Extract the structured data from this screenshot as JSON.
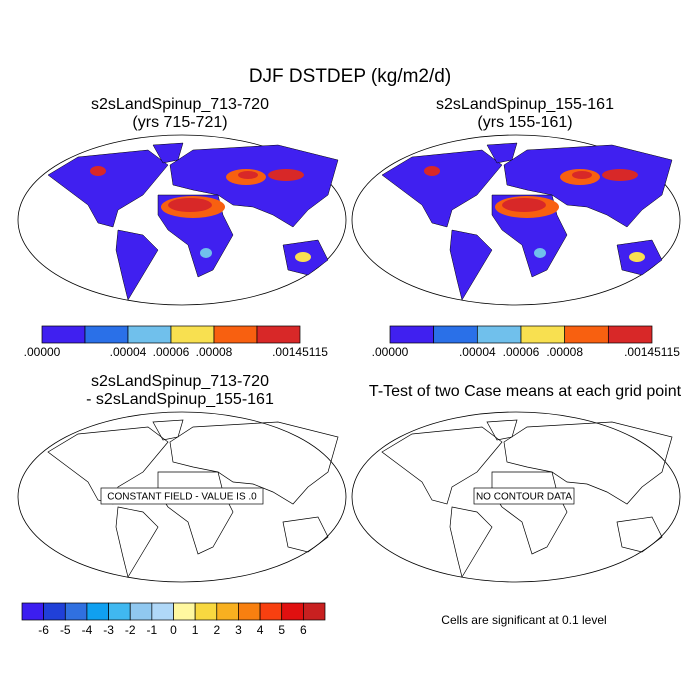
{
  "title": "DJF DSTDEP (kg/m2/d)",
  "panels": [
    {
      "title": "s2sLandSpinup_713-720",
      "subtitle": "(yrs 715-721)"
    },
    {
      "title": "s2sLandSpinup_155-161",
      "subtitle": "(yrs 155-161)"
    },
    {
      "title": "s2sLandSpinup_713-720",
      "subtitle": "- s2sLandSpinup_155-161",
      "note": "CONSTANT FIELD - VALUE IS .0"
    },
    {
      "title": "T-Test of two Case means at each grid point",
      "note": "NO CONTOUR DATA"
    }
  ],
  "colorbars": [
    {
      "colors": [
        "#4020f0",
        "#2a70e8",
        "#70c0ec",
        "#f8e050",
        "#f86010",
        "#d82828"
      ],
      "labels": [
        ".00000",
        ".00004",
        ".00006",
        ".00008",
        ".00145115"
      ]
    },
    {
      "colors": [
        "#4020f0",
        "#2a70e8",
        "#70c0ec",
        "#f8e050",
        "#f86010",
        "#d82828"
      ],
      "labels": [
        ".00000",
        ".00004",
        ".00006",
        ".00008",
        ".00145115"
      ]
    },
    {
      "colors": [
        "#3c1ef0",
        "#2040d8",
        "#3070e0",
        "#10a0f0",
        "#40b8f0",
        "#90c8f0",
        "#b0d8f8",
        "#fff8a0",
        "#f8d840",
        "#f8b020",
        "#f88010",
        "#f84010",
        "#e01010",
        "#c82020"
      ],
      "labels": [
        "-6",
        "-5",
        "-4",
        "-3",
        "-2",
        "-1",
        "0",
        "1",
        "2",
        "3",
        "4",
        "5",
        "6"
      ]
    }
  ],
  "footnote": "Cells are significant at 0.1 level"
}
